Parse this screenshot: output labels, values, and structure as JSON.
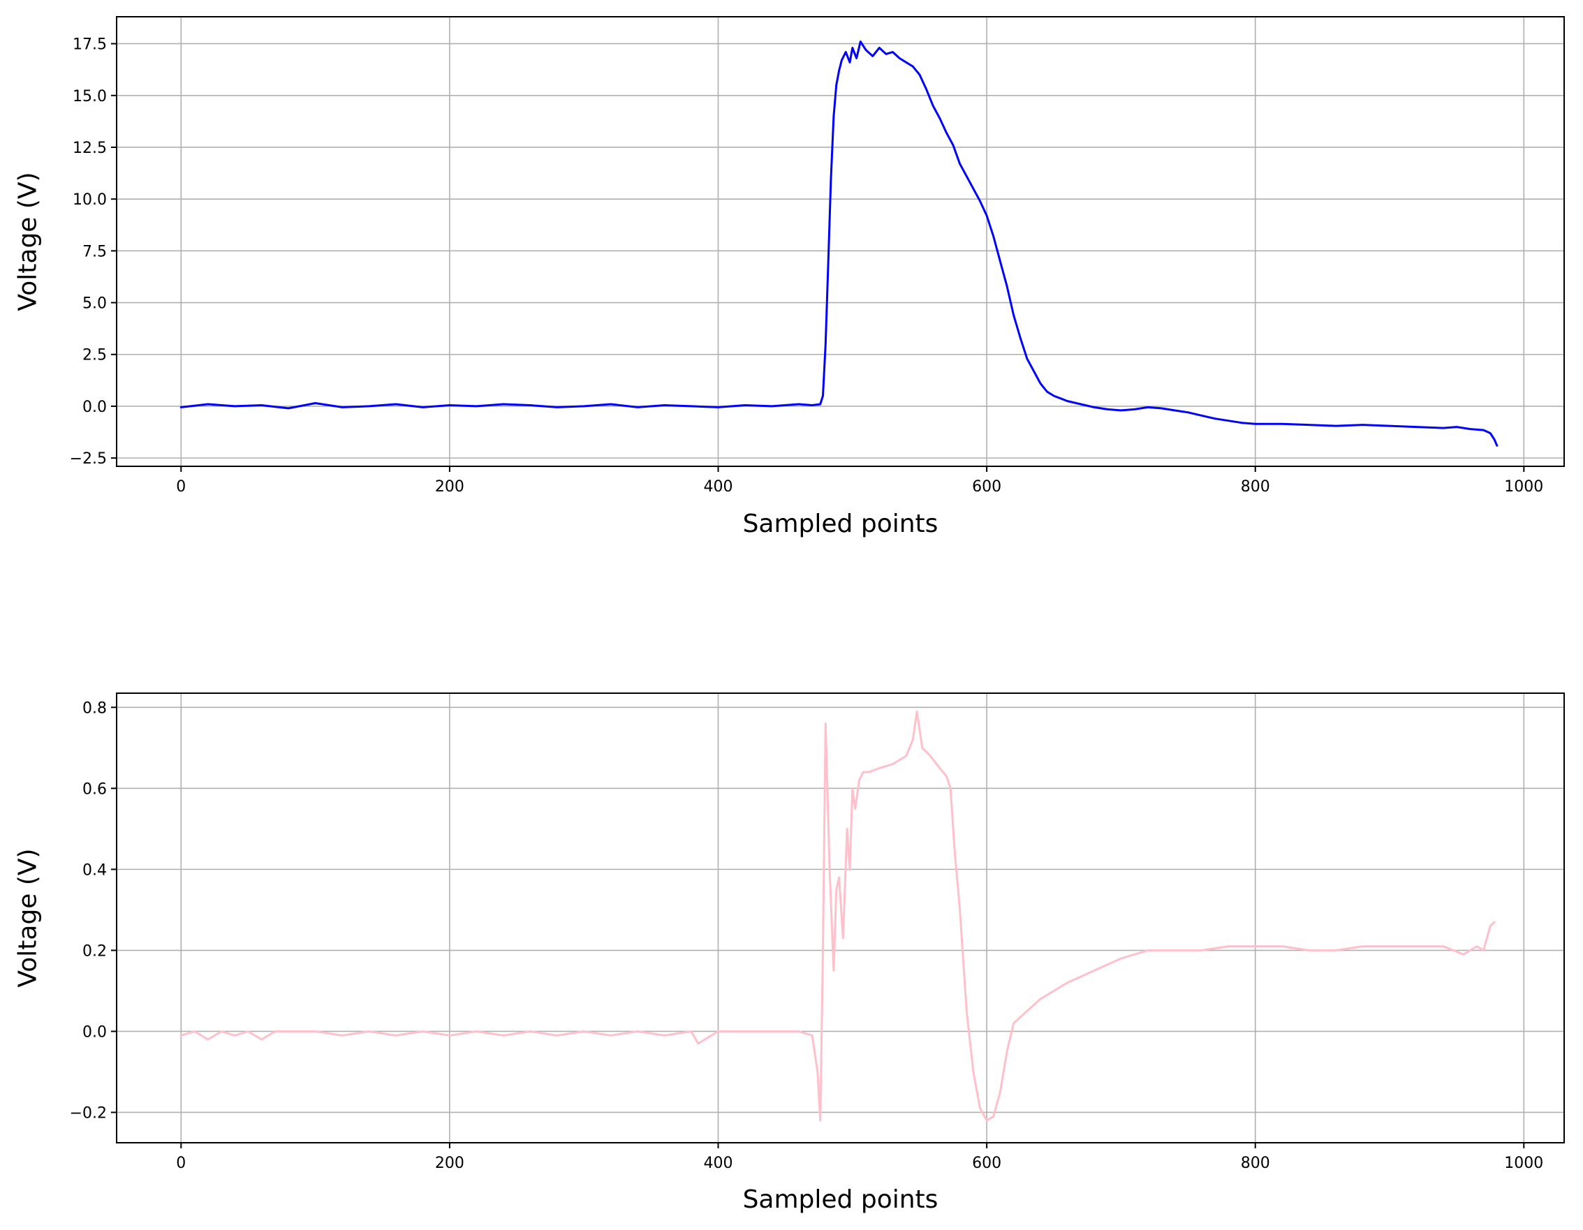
{
  "chart_data": [
    {
      "type": "line",
      "title": "",
      "xlabel": "Sampled points",
      "ylabel": "Voltage (V)",
      "xlim": [
        -48,
        1030
      ],
      "ylim": [
        -2.9,
        18.8
      ],
      "xticks": [
        0,
        200,
        400,
        600,
        800,
        1000
      ],
      "yticks": [
        -2.5,
        0.0,
        2.5,
        5.0,
        7.5,
        10.0,
        12.5,
        15.0,
        17.5
      ],
      "xtick_labels": [
        "0",
        "200",
        "400",
        "600",
        "800",
        "1000"
      ],
      "ytick_labels": [
        "−2.5",
        "0.0",
        "2.5",
        "5.0",
        "7.5",
        "10.0",
        "12.5",
        "15.0",
        "17.5"
      ],
      "grid": true,
      "color": "#0000ff",
      "series": [
        {
          "x": [
            0,
            20,
            40,
            60,
            80,
            100,
            120,
            140,
            160,
            180,
            200,
            220,
            240,
            260,
            280,
            300,
            320,
            340,
            360,
            380,
            400,
            420,
            440,
            460,
            470,
            476,
            478,
            480,
            482,
            484,
            486,
            488,
            490,
            492,
            495,
            498,
            500,
            503,
            506,
            510,
            515,
            520,
            525,
            530,
            535,
            540,
            545,
            550,
            555,
            560,
            565,
            570,
            575,
            580,
            585,
            590,
            595,
            600,
            605,
            610,
            615,
            620,
            625,
            630,
            635,
            640,
            645,
            650,
            660,
            670,
            680,
            690,
            700,
            710,
            720,
            730,
            740,
            750,
            760,
            770,
            780,
            790,
            800,
            820,
            840,
            860,
            880,
            900,
            920,
            940,
            950,
            960,
            970,
            975,
            978,
            980
          ],
          "y": [
            -0.05,
            0.1,
            0.0,
            0.05,
            -0.1,
            0.15,
            -0.05,
            0.0,
            0.1,
            -0.05,
            0.05,
            0.0,
            0.1,
            0.05,
            -0.05,
            0.0,
            0.1,
            -0.05,
            0.05,
            0.0,
            -0.05,
            0.05,
            0.0,
            0.1,
            0.05,
            0.1,
            0.5,
            3.0,
            7.0,
            11.0,
            14.0,
            15.5,
            16.2,
            16.7,
            17.1,
            16.6,
            17.3,
            16.8,
            17.6,
            17.2,
            16.9,
            17.3,
            17.0,
            17.1,
            16.8,
            16.6,
            16.4,
            16.0,
            15.3,
            14.5,
            13.9,
            13.2,
            12.6,
            11.7,
            11.1,
            10.5,
            9.9,
            9.2,
            8.2,
            7.0,
            5.8,
            4.4,
            3.3,
            2.3,
            1.7,
            1.1,
            0.7,
            0.5,
            0.25,
            0.1,
            -0.05,
            -0.15,
            -0.2,
            -0.15,
            -0.05,
            -0.1,
            -0.2,
            -0.3,
            -0.45,
            -0.6,
            -0.7,
            -0.8,
            -0.85,
            -0.85,
            -0.9,
            -0.95,
            -0.9,
            -0.95,
            -1.0,
            -1.05,
            -1.0,
            -1.1,
            -1.15,
            -1.3,
            -1.6,
            -1.9
          ]
        }
      ]
    },
    {
      "type": "line",
      "title": "",
      "xlabel": "Sampled points",
      "ylabel": "Voltage (V)",
      "xlim": [
        -48,
        1030
      ],
      "ylim": [
        -0.275,
        0.835
      ],
      "xticks": [
        0,
        200,
        400,
        600,
        800,
        1000
      ],
      "yticks": [
        -0.2,
        0.0,
        0.2,
        0.4,
        0.6,
        0.8
      ],
      "xtick_labels": [
        "0",
        "200",
        "400",
        "600",
        "800",
        "1000"
      ],
      "ytick_labels": [
        "−0.2",
        "0.0",
        "0.2",
        "0.4",
        "0.6",
        "0.8"
      ],
      "grid": true,
      "color": "#ffc0cb",
      "series": [
        {
          "x": [
            0,
            10,
            20,
            30,
            40,
            50,
            60,
            70,
            80,
            100,
            120,
            140,
            160,
            180,
            200,
            220,
            240,
            260,
            280,
            300,
            320,
            340,
            360,
            380,
            385,
            400,
            420,
            440,
            460,
            470,
            474,
            476,
            478,
            480,
            483,
            486,
            488,
            490,
            493,
            496,
            498,
            500,
            502,
            505,
            508,
            512,
            520,
            530,
            540,
            545,
            548,
            552,
            558,
            565,
            570,
            573,
            576,
            580,
            585,
            590,
            595,
            600,
            605,
            610,
            615,
            620,
            630,
            640,
            650,
            660,
            680,
            700,
            720,
            740,
            760,
            780,
            800,
            820,
            840,
            860,
            880,
            900,
            920,
            940,
            955,
            960,
            965,
            970,
            975,
            978
          ],
          "y": [
            -0.01,
            0.0,
            -0.02,
            0.0,
            -0.01,
            0.0,
            -0.02,
            0.0,
            0.0,
            0.0,
            -0.01,
            0.0,
            -0.01,
            0.0,
            -0.01,
            0.0,
            -0.01,
            0.0,
            -0.01,
            0.0,
            -0.01,
            0.0,
            -0.01,
            0.0,
            -0.03,
            0.0,
            0.0,
            0.0,
            0.0,
            -0.01,
            -0.1,
            -0.22,
            0.2,
            0.76,
            0.4,
            0.15,
            0.35,
            0.38,
            0.23,
            0.5,
            0.4,
            0.6,
            0.55,
            0.62,
            0.64,
            0.64,
            0.65,
            0.66,
            0.68,
            0.72,
            0.79,
            0.7,
            0.68,
            0.65,
            0.63,
            0.6,
            0.45,
            0.3,
            0.05,
            -0.1,
            -0.19,
            -0.22,
            -0.21,
            -0.15,
            -0.05,
            0.02,
            0.05,
            0.08,
            0.1,
            0.12,
            0.15,
            0.18,
            0.2,
            0.2,
            0.2,
            0.21,
            0.21,
            0.21,
            0.2,
            0.2,
            0.21,
            0.21,
            0.21,
            0.21,
            0.19,
            0.2,
            0.21,
            0.2,
            0.26,
            0.27
          ]
        }
      ]
    }
  ]
}
